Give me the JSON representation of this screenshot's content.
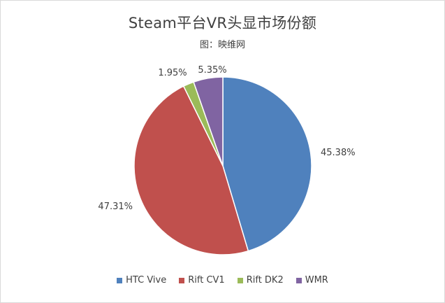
{
  "chart_data": {
    "type": "pie",
    "title": "Steam平台VR头显市场份额",
    "subtitle": "图：映维网",
    "categories": [
      "HTC Vive",
      "Rift CV1",
      "Rift DK2",
      "WMR"
    ],
    "values": [
      45.38,
      47.31,
      1.95,
      5.35
    ],
    "value_labels": [
      "45.38%",
      "47.31%",
      "1.95%",
      "5.35%"
    ],
    "colors": [
      "#4f81bd",
      "#c0504d",
      "#9bbb59",
      "#8064a2"
    ],
    "legend_position": "bottom",
    "start_angle": "12 o'clock",
    "direction": "clockwise"
  }
}
